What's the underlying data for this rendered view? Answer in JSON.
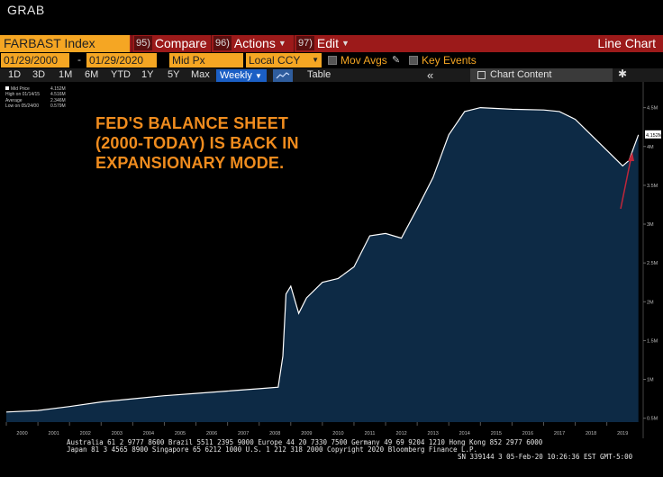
{
  "window": {
    "title": "GRAB"
  },
  "toolbar": {
    "ticker": "FARBAST Index",
    "compare": {
      "num": "95)",
      "label": "Compare"
    },
    "actions": {
      "num": "96)",
      "label": "Actions"
    },
    "edit": {
      "num": "97)",
      "label": "Edit"
    },
    "view_label": "Line Chart"
  },
  "controls": {
    "start_date": "01/29/2000",
    "end_date": "01/29/2020",
    "price_field": "Mid Px",
    "currency": "Local CCY",
    "mov_avgs": "Mov Avgs",
    "key_events": "Key Events"
  },
  "periods": [
    "1D",
    "3D",
    "1M",
    "6M",
    "YTD",
    "1Y",
    "5Y",
    "Max"
  ],
  "frequency": "Weekly",
  "table_label": "Table",
  "chart_content_label": "Chart Content",
  "legend": {
    "rows": [
      {
        "label": "Mid Price",
        "value": "4.152M"
      },
      {
        "label": "High on 01/14/15",
        "value": "4.516M"
      },
      {
        "label": "Average",
        "value": "2.346M"
      },
      {
        "label": "Low on 05/24/00",
        "value": "0.579M"
      }
    ]
  },
  "annotation": {
    "lines": [
      "FED'S BALANCE SHEET",
      "(2000-TODAY) IS BACK IN",
      "EXPANSIONARY MODE."
    ]
  },
  "footer": {
    "line1": "Australia 61 2 9777 8600 Brazil 5511 2395 9000 Europe 44 20 7330 7500 Germany 49 69 9204 1210 Hong Kong 852 2977 6000",
    "line2": "Japan 81 3 4565 8900         Singapore 65 6212 1000        U.S. 1 212 318 2000          Copyright 2020 Bloomberg Finance L.P.",
    "line3": "SN 339144 3 05-Feb-20 10:26:36 EST  GMT-5:00"
  },
  "colors": {
    "accent_orange": "#f5a623",
    "toolbar_red": "#9c1a1a",
    "area_fill": "#0d2a45",
    "line": "#ffffff",
    "annotation": "#f08c1e",
    "arrow": "#c0263a"
  },
  "chart_data": {
    "type": "area",
    "title": "",
    "xlabel": "",
    "ylabel": "",
    "x_ticks": [
      "2000",
      "2001",
      "2002",
      "2003",
      "2004",
      "2005",
      "2006",
      "2007",
      "2008",
      "2009",
      "2010",
      "2011",
      "2012",
      "2013",
      "2014",
      "2015",
      "2016",
      "2017",
      "2018",
      "2019"
    ],
    "y_ticks": [
      "0.5M",
      "1M",
      "1.5M",
      "2M",
      "2.5M",
      "3M",
      "3.5M",
      "4M",
      "4.5M"
    ],
    "ylim": [
      0.45,
      4.6
    ],
    "last_value_label": "4.152M",
    "series": [
      {
        "values": [
          {
            "x": 2000.0,
            "y": 0.58
          },
          {
            "x": 2001.0,
            "y": 0.6
          },
          {
            "x": 2002.0,
            "y": 0.65
          },
          {
            "x": 2003.0,
            "y": 0.71
          },
          {
            "x": 2004.0,
            "y": 0.75
          },
          {
            "x": 2005.0,
            "y": 0.79
          },
          {
            "x": 2006.0,
            "y": 0.82
          },
          {
            "x": 2007.0,
            "y": 0.85
          },
          {
            "x": 2008.0,
            "y": 0.88
          },
          {
            "x": 2008.6,
            "y": 0.9
          },
          {
            "x": 2008.75,
            "y": 1.3
          },
          {
            "x": 2008.85,
            "y": 2.1
          },
          {
            "x": 2009.0,
            "y": 2.2
          },
          {
            "x": 2009.25,
            "y": 1.85
          },
          {
            "x": 2009.5,
            "y": 2.05
          },
          {
            "x": 2010.0,
            "y": 2.25
          },
          {
            "x": 2010.5,
            "y": 2.3
          },
          {
            "x": 2011.0,
            "y": 2.45
          },
          {
            "x": 2011.5,
            "y": 2.85
          },
          {
            "x": 2012.0,
            "y": 2.88
          },
          {
            "x": 2012.5,
            "y": 2.82
          },
          {
            "x": 2013.0,
            "y": 3.2
          },
          {
            "x": 2013.5,
            "y": 3.6
          },
          {
            "x": 2014.0,
            "y": 4.15
          },
          {
            "x": 2014.5,
            "y": 4.45
          },
          {
            "x": 2015.0,
            "y": 4.5
          },
          {
            "x": 2016.0,
            "y": 4.48
          },
          {
            "x": 2017.0,
            "y": 4.47
          },
          {
            "x": 2017.5,
            "y": 4.45
          },
          {
            "x": 2018.0,
            "y": 4.35
          },
          {
            "x": 2018.5,
            "y": 4.15
          },
          {
            "x": 2019.0,
            "y": 3.95
          },
          {
            "x": 2019.5,
            "y": 3.75
          },
          {
            "x": 2019.7,
            "y": 3.82
          },
          {
            "x": 2020.0,
            "y": 4.15
          }
        ]
      }
    ]
  }
}
